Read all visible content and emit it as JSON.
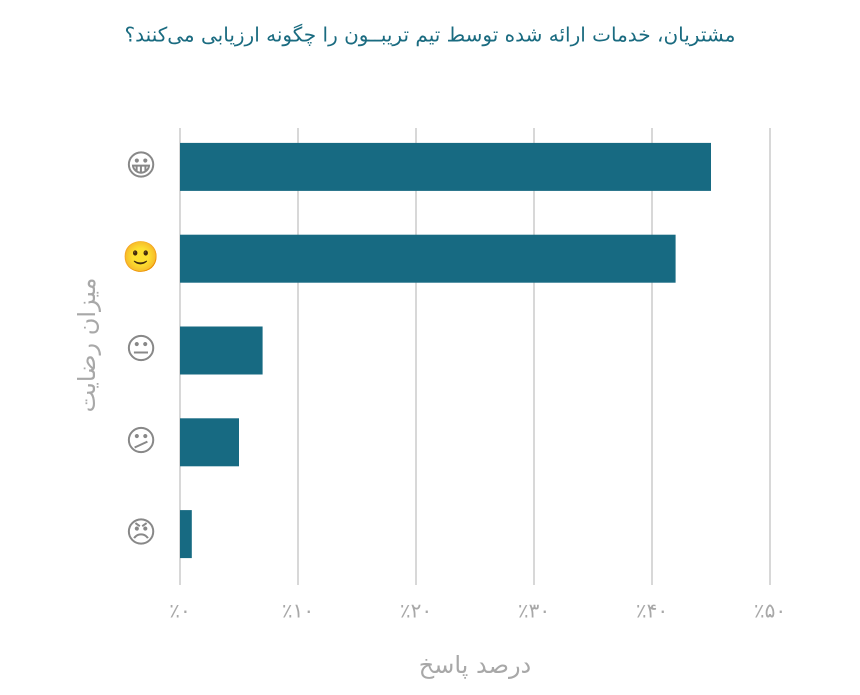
{
  "chart_data": {
    "type": "hbar",
    "title": "مشتریان، خدمات ارائه شده توسط تیم تریبــون را چگونه ارزیابی می‌کنند؟",
    "x_label": "درصد پاسخ",
    "y_label": "میزان رضایت",
    "categories": [
      "😀",
      "🙂",
      "😐",
      "😕",
      "😠"
    ],
    "values": [
      45,
      42,
      7,
      5,
      1
    ],
    "color": "#176a82",
    "xlim": [
      0,
      50
    ],
    "xticks": [
      {
        "value": 0,
        "label": "٪۰"
      },
      {
        "value": 10,
        "label": "٪۱۰"
      },
      {
        "value": 20,
        "label": "٪۲۰"
      },
      {
        "value": 30,
        "label": "٪۳۰"
      },
      {
        "value": 40,
        "label": "٪۴۰"
      },
      {
        "value": 50,
        "label": "٪۵۰"
      }
    ],
    "grid": true
  }
}
